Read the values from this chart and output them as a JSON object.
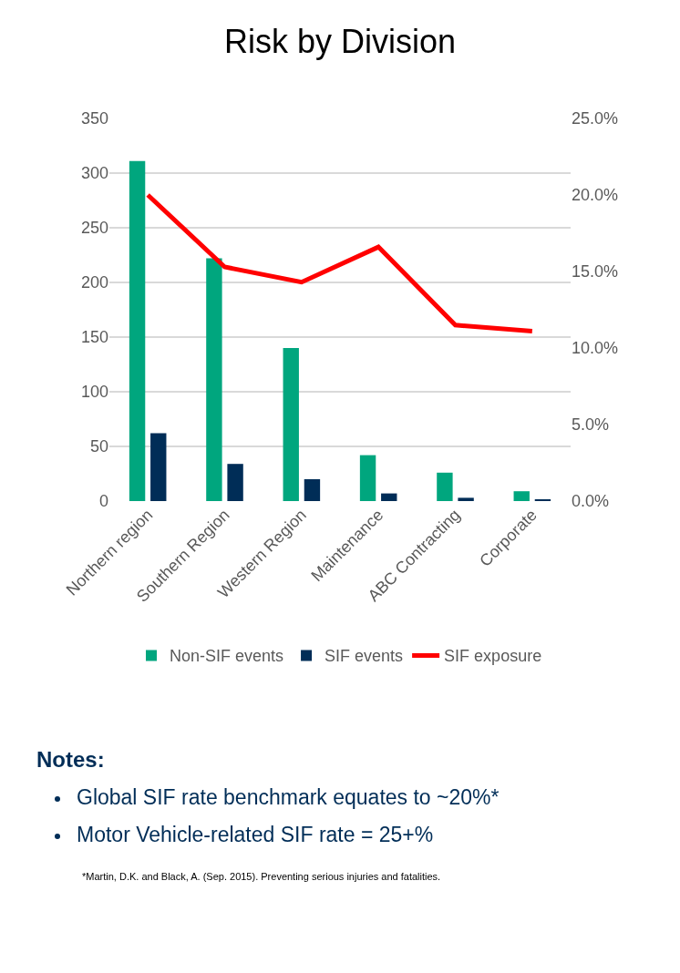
{
  "chart_data": {
    "type": "bar",
    "title": "Risk by Division",
    "categories": [
      "Northern region",
      "Southern Region",
      "Western Region",
      "Maintenance",
      "ABC Contracting",
      "Corporate"
    ],
    "series": [
      {
        "name": "Non-SIF events",
        "color": "#00a67e",
        "values": [
          311,
          222,
          140,
          42,
          26,
          9
        ]
      },
      {
        "name": "SIF events",
        "color": "#002d57",
        "values": [
          62,
          34,
          20,
          7,
          3,
          1
        ]
      },
      {
        "name": "SIF exposure",
        "type": "line",
        "axis": "y2",
        "color": "#ff0000",
        "values": [
          20.0,
          15.3,
          14.3,
          16.6,
          11.5,
          11.1
        ]
      }
    ],
    "ylim": [
      0,
      350
    ],
    "yticks": [
      0,
      50,
      100,
      150,
      200,
      250,
      300,
      350
    ],
    "y2lim": [
      0,
      25
    ],
    "y2ticks": [
      {
        "value": 0,
        "label": "0.0%"
      },
      {
        "value": 5,
        "label": "5.0%"
      },
      {
        "value": 10,
        "label": "10.0%"
      },
      {
        "value": 15,
        "label": "15.0%"
      },
      {
        "value": 20,
        "label": "20.0%"
      },
      {
        "value": 25,
        "label": "25.0%"
      }
    ],
    "grid": "y",
    "legend": "bottom",
    "marker": "none",
    "line_style": "solid",
    "annotations": [
      "Notes:",
      "Global SIF rate benchmark equates to ~20%*",
      "Motor Vehicle-related SIF rate = 25+%",
      "*Martin, D.K. and Black, A. (Sep. 2015). Preventing serious injuries and fatalities."
    ]
  }
}
